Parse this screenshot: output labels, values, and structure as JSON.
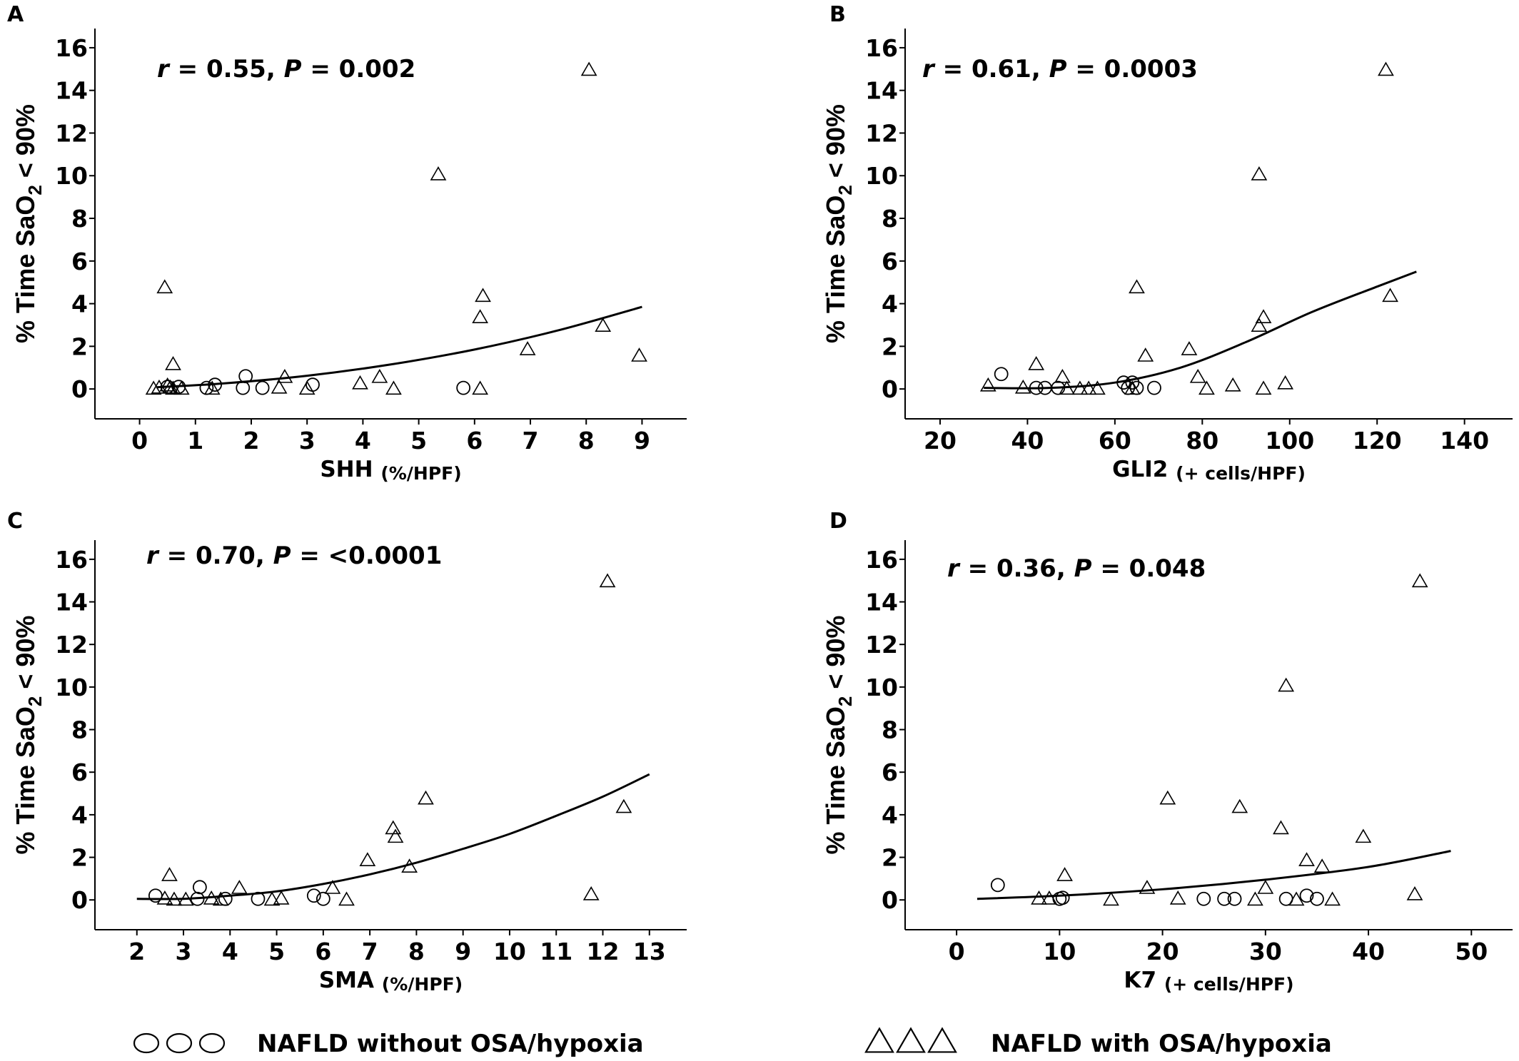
{
  "legend": {
    "circle_label": "NAFLD without OSA/hypoxia",
    "triangle_label": "NAFLD with OSA/hypoxia"
  },
  "colors": {
    "ink": "#000000",
    "background": "#ffffff"
  },
  "chart_data": [
    {
      "panel": "A",
      "type": "scatter",
      "stat": {
        "r": "0.55",
        "p": "0.002"
      },
      "xlabel": "SHH",
      "xunit": "(%/HPF)",
      "ylabel": "% Time SaO2 < 90%",
      "xticks": [
        0,
        1,
        2,
        3,
        4,
        5,
        6,
        7,
        8,
        9
      ],
      "yticks": [
        0,
        2,
        4,
        6,
        8,
        10,
        12,
        14,
        16
      ],
      "xlim": [
        -0.8,
        9.8
      ],
      "ylim": [
        -1.4,
        16.9
      ],
      "series": [
        {
          "marker": "circle",
          "x": [
            0.5,
            0.7,
            1.2,
            1.35,
            1.85,
            1.9,
            2.2,
            3.1,
            5.8
          ],
          "y": [
            0.1,
            0.1,
            0.05,
            0.2,
            0.05,
            0.6,
            0.05,
            0.2,
            0.05
          ]
        },
        {
          "marker": "triangle",
          "x": [
            0.25,
            0.35,
            0.45,
            0.5,
            0.55,
            0.6,
            0.6,
            0.75,
            1.3,
            2.5,
            2.6,
            3.0,
            3.95,
            4.3,
            4.55,
            5.35,
            6.1,
            6.1,
            6.15,
            6.95,
            8.05,
            8.3,
            8.95
          ],
          "y": [
            0.05,
            0.1,
            4.8,
            0.2,
            0.1,
            0.05,
            1.2,
            0.05,
            0.05,
            0.1,
            0.6,
            0.05,
            0.3,
            0.6,
            0.05,
            10.1,
            0.05,
            3.4,
            4.4,
            1.9,
            15.0,
            3.0,
            1.6
          ]
        }
      ],
      "fit": {
        "x": [
          0.3,
          1.5,
          3.0,
          4.5,
          6.0,
          7.5,
          9.0
        ],
        "y": [
          0.08,
          0.26,
          0.62,
          1.15,
          1.85,
          2.75,
          3.85
        ]
      }
    },
    {
      "panel": "B",
      "type": "scatter",
      "stat": {
        "r": "0.61",
        "p": "0.0003"
      },
      "xlabel": "GLI2",
      "xunit": "(+ cells/HPF)",
      "ylabel": "% Time SaO2 < 90%",
      "xticks": [
        20,
        40,
        60,
        80,
        100,
        120,
        140
      ],
      "yticks": [
        0,
        2,
        4,
        6,
        8,
        10,
        12,
        14,
        16
      ],
      "xlim": [
        12,
        151
      ],
      "ylim": [
        -1.4,
        16.9
      ],
      "series": [
        {
          "marker": "circle",
          "x": [
            34,
            42,
            44,
            47,
            62,
            63,
            64,
            65,
            69
          ],
          "y": [
            0.7,
            0.05,
            0.05,
            0.05,
            0.3,
            0.05,
            0.3,
            0.05,
            0.05
          ]
        },
        {
          "marker": "triangle",
          "x": [
            31,
            39,
            42,
            48,
            49,
            52,
            54,
            56,
            64,
            65,
            67,
            77,
            79,
            81,
            87,
            93,
            93,
            94,
            94,
            99,
            122,
            123
          ],
          "y": [
            0.2,
            0.1,
            1.2,
            0.6,
            0.05,
            0.05,
            0.05,
            0.05,
            0.05,
            4.8,
            1.6,
            1.9,
            0.6,
            0.05,
            0.2,
            10.1,
            3.0,
            3.4,
            0.05,
            0.3,
            15.0,
            4.4
          ]
        }
      ],
      "fit": {
        "x": [
          30,
          45,
          60,
          75,
          90,
          105,
          120,
          129
        ],
        "y": [
          0.05,
          0.05,
          0.3,
          1.0,
          2.2,
          3.6,
          4.8,
          5.5
        ]
      }
    },
    {
      "panel": "C",
      "type": "scatter",
      "stat": {
        "r": "0.70",
        "p": "<0.0001"
      },
      "xlabel": "SMA",
      "xunit": "(%/HPF)",
      "ylabel": "% Time SaO2 < 90%",
      "xticks": [
        2,
        3,
        4,
        5,
        6,
        7,
        8,
        9,
        10,
        11,
        12,
        13
      ],
      "yticks": [
        0,
        2,
        4,
        6,
        8,
        10,
        12,
        14,
        16
      ],
      "xlim": [
        1.1,
        13.8
      ],
      "ylim": [
        -1.4,
        16.9
      ],
      "series": [
        {
          "marker": "circle",
          "x": [
            2.4,
            3.3,
            3.35,
            3.9,
            4.6,
            5.8,
            6.0
          ],
          "y": [
            0.2,
            0.05,
            0.6,
            0.05,
            0.05,
            0.2,
            0.05
          ]
        },
        {
          "marker": "triangle",
          "x": [
            2.6,
            2.7,
            2.8,
            3.05,
            3.6,
            3.8,
            4.2,
            4.9,
            5.1,
            6.2,
            6.5,
            6.95,
            7.5,
            7.55,
            7.85,
            8.2,
            11.75,
            12.1,
            12.45
          ],
          "y": [
            0.1,
            1.2,
            0.05,
            0.05,
            0.1,
            0.05,
            0.6,
            0.05,
            0.1,
            0.6,
            0.05,
            1.9,
            3.4,
            3.0,
            1.6,
            4.8,
            0.3,
            15.0,
            4.4
          ]
        }
      ],
      "fit": {
        "x": [
          2,
          3,
          4,
          5,
          6,
          7,
          8,
          9,
          10,
          11,
          12,
          13
        ],
        "y": [
          0.05,
          0.05,
          0.2,
          0.4,
          0.75,
          1.2,
          1.75,
          2.4,
          3.1,
          3.95,
          4.85,
          5.9
        ]
      }
    },
    {
      "panel": "D",
      "type": "scatter",
      "stat": {
        "r": "0.36",
        "p": "0.048"
      },
      "xlabel": "K7",
      "xunit": "(+ cells/HPF)",
      "ylabel": "% Time SaO2 < 90%",
      "xticks": [
        0,
        10,
        20,
        30,
        40,
        50
      ],
      "yticks": [
        0,
        2,
        4,
        6,
        8,
        10,
        12,
        14,
        16
      ],
      "xlim": [
        -5,
        54
      ],
      "ylim": [
        -1.4,
        16.9
      ],
      "series": [
        {
          "marker": "circle",
          "x": [
            4,
            10,
            10.3,
            24,
            26,
            27,
            32,
            34,
            35
          ],
          "y": [
            0.7,
            0.05,
            0.1,
            0.05,
            0.05,
            0.05,
            0.05,
            0.2,
            0.05
          ]
        },
        {
          "marker": "triangle",
          "x": [
            8,
            9,
            10.5,
            15,
            18.5,
            20.5,
            21.5,
            27.5,
            29,
            30,
            31.5,
            32,
            33,
            34,
            35.5,
            36.5,
            39.5,
            44.5,
            45
          ],
          "y": [
            0.1,
            0.1,
            1.2,
            0.05,
            0.6,
            4.8,
            0.1,
            4.4,
            0.05,
            0.6,
            3.4,
            10.1,
            0.05,
            1.9,
            1.6,
            0.05,
            3.0,
            0.3,
            15.0
          ]
        }
      ],
      "fit": {
        "x": [
          2,
          10,
          20,
          30,
          40,
          48
        ],
        "y": [
          0.05,
          0.2,
          0.5,
          0.95,
          1.55,
          2.3
        ]
      }
    }
  ]
}
